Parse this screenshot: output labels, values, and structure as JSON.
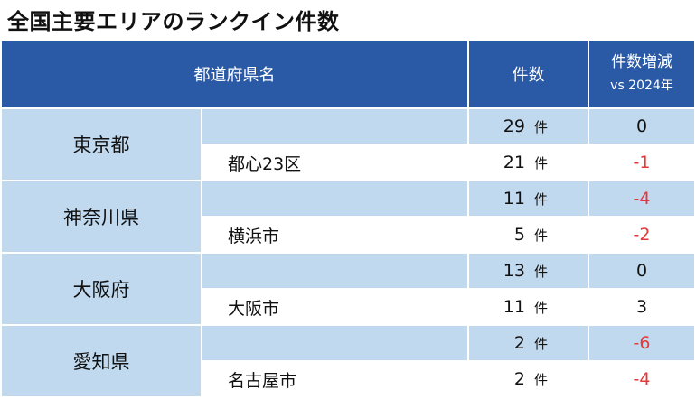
{
  "title": "全国主要エリアのランクイン件数",
  "headers": {
    "prefecture": "都道府県名",
    "count": "件数",
    "diff_line1": "件数増減",
    "diff_line2": "vs 2024年"
  },
  "unit": "件",
  "rows": [
    {
      "pref": "東京都",
      "count": "29",
      "diff": "0",
      "city": "都心23区",
      "city_count": "21",
      "city_diff": "-1"
    },
    {
      "pref": "神奈川県",
      "count": "11",
      "diff": "-4",
      "city": "横浜市",
      "city_count": "5",
      "city_diff": "-2"
    },
    {
      "pref": "大阪府",
      "count": "13",
      "diff": "0",
      "city": "大阪市",
      "city_count": "11",
      "city_diff": "3"
    },
    {
      "pref": "愛知県",
      "count": "2",
      "diff": "-6",
      "city": "名古屋市",
      "city_count": "2",
      "city_diff": "-4"
    }
  ]
}
